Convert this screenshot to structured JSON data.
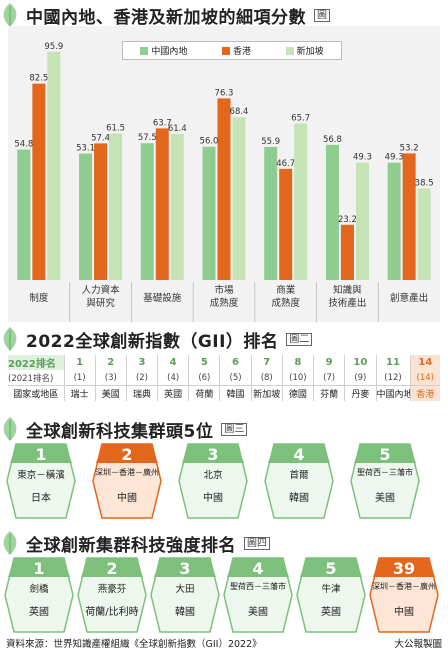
{
  "chart_data": {
    "type": "bar",
    "title": "中國內地、香港及新加坡的細項分數",
    "figure_tag": "圖",
    "categories": [
      "制度",
      "人力資本\n與研究",
      "基礎設施",
      "市場\n成熟度",
      "商業\n成熟度",
      "知識與\n技術產出",
      "創意產出"
    ],
    "series": [
      {
        "name": "中國內地",
        "color": "#8fcc8f",
        "values": [
          54.8,
          53.1,
          57.5,
          56.0,
          55.9,
          56.8,
          49.3
        ]
      },
      {
        "name": "香港",
        "color": "#e2671c",
        "values": [
          82.5,
          57.4,
          63.7,
          76.3,
          46.7,
          23.2,
          53.2
        ]
      },
      {
        "name": "新加坡",
        "color": "#c5e3b4",
        "values": [
          95.9,
          61.5,
          61.4,
          68.4,
          65.7,
          49.3,
          38.5
        ]
      }
    ],
    "ylim": [
      0,
      100
    ]
  },
  "section2": {
    "title": "2022全球創新指數（GII）排名",
    "fig": "圖二",
    "ranks": [
      "2022排名",
      "1",
      "2",
      "3",
      "4",
      "5",
      "6",
      "7",
      "8",
      "9",
      "10",
      "11",
      "14"
    ],
    "prev": [
      "(2021排名)",
      "(1)",
      "(3)",
      "(2)",
      "(4)",
      "(6)",
      "(5)",
      "(8)",
      "(10)",
      "(7)",
      "(9)",
      "(12)",
      "(14)"
    ],
    "names": [
      "國家或地區",
      "瑞士",
      "美國",
      "瑞典",
      "英國",
      "荷蘭",
      "韓國",
      "新加坡",
      "德國",
      "芬蘭",
      "丹麥",
      "中國內地",
      "香港"
    ]
  },
  "section3": {
    "title": "全球創新科技集群頭5位",
    "fig": "圖三",
    "items": [
      {
        "rank": "1",
        "name": "東京－橫濱",
        "country": "日本",
        "orange": false
      },
      {
        "rank": "2",
        "name": "深圳－香港－廣州",
        "country": "中國",
        "orange": true
      },
      {
        "rank": "3",
        "name": "北京",
        "country": "中國",
        "orange": false
      },
      {
        "rank": "4",
        "name": "首爾",
        "country": "韓國",
        "orange": false
      },
      {
        "rank": "5",
        "name": "聖荷西－三藩市",
        "country": "美國",
        "orange": false
      }
    ]
  },
  "section4": {
    "title": "全球創新集群科技強度排名",
    "fig": "圖四",
    "items": [
      {
        "rank": "1",
        "name": "劍橋",
        "country": "英國",
        "orange": false
      },
      {
        "rank": "2",
        "name": "燕豪芬",
        "country": "荷蘭/比利時",
        "orange": false
      },
      {
        "rank": "3",
        "name": "大田",
        "country": "韓國",
        "orange": false
      },
      {
        "rank": "4",
        "name": "聖荷西－三藩市",
        "country": "美國",
        "orange": false
      },
      {
        "rank": "5",
        "name": "牛津",
        "country": "英國",
        "orange": false
      },
      {
        "rank": "39",
        "name": "深圳－香港－廣州",
        "country": "中國",
        "orange": true
      }
    ]
  },
  "footer": {
    "source": "資料來源：世界知識產權組織《全球創新指數（GII）2022》",
    "credit": "大公報製圖"
  }
}
